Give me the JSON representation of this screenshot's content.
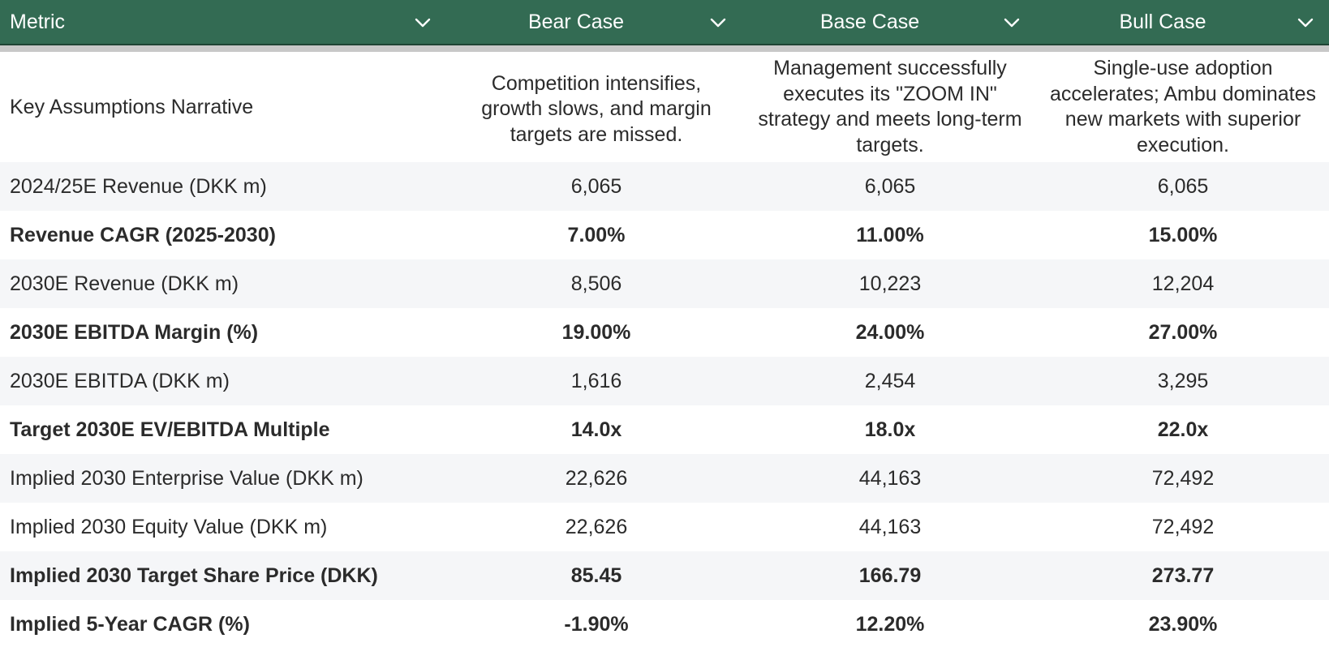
{
  "header": {
    "columns": [
      "Metric",
      "Bear Case",
      "Base Case",
      "Bull Case"
    ],
    "icon": "chevron-down-icon"
  },
  "narrative": {
    "label": "Key Assumptions Narrative",
    "bear": "Competition intensifies, growth slows, and margin targets are missed.",
    "base": "Management successfully executes its \"ZOOM IN\" strategy and meets long-term targets.",
    "bull": "Single-use adoption accelerates; Ambu dominates new markets with superior execution."
  },
  "rows": [
    {
      "label": "2024/25E Revenue (DKK m)",
      "bear": "6,065",
      "base": "6,065",
      "bull": "6,065"
    },
    {
      "label": "Revenue CAGR (2025-2030)",
      "bear": "7.00%",
      "base": "11.00%",
      "bull": "15.00%"
    },
    {
      "label": "2030E Revenue (DKK m)",
      "bear": "8,506",
      "base": "10,223",
      "bull": "12,204"
    },
    {
      "label": "2030E EBITDA Margin (%)",
      "bear": "19.00%",
      "base": "24.00%",
      "bull": "27.00%"
    },
    {
      "label": "2030E EBITDA (DKK m)",
      "bear": "1,616",
      "base": "2,454",
      "bull": "3,295"
    },
    {
      "label": "Target 2030E EV/EBITDA Multiple",
      "bear": "14.0x",
      "base": "18.0x",
      "bull": "22.0x"
    },
    {
      "label": "Implied 2030 Enterprise Value (DKK m)",
      "bear": "22,626",
      "base": "44,163",
      "bull": "72,492"
    },
    {
      "label": "Implied 2030 Equity Value (DKK m)",
      "bear": "22,626",
      "base": "44,163",
      "bull": "72,492"
    },
    {
      "label": "Implied 2030 Target Share Price (DKK)",
      "bear": "85.45",
      "base": "166.79",
      "bull": "273.77"
    },
    {
      "label": "Implied 5-Year CAGR (%)",
      "bear": "-1.90%",
      "base": "12.20%",
      "bull": "23.90%"
    }
  ],
  "colors": {
    "header_bg": "#336b53",
    "header_text": "#ffffff",
    "alt_row": "#f5f6f8"
  }
}
